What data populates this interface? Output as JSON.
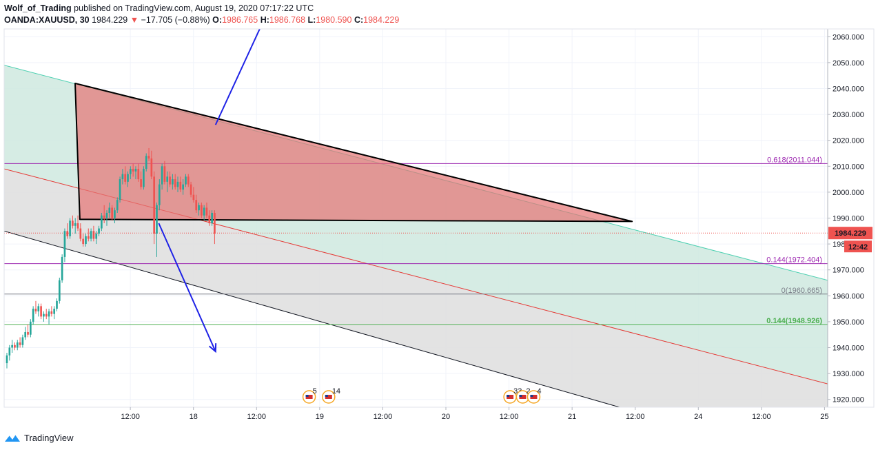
{
  "header": {
    "author": "Wolf_of_Trading",
    "published": "published on TradingView.com, August 19, 2020 07:17:22 UTC",
    "symbol": "OANDA:XAUUSD, 30",
    "last": "1984.229",
    "change": "−17.705 (−0.88%)",
    "o_label": "O:",
    "o": "1986.765",
    "h_label": "H:",
    "h": "1986.768",
    "l_label": "L:",
    "l": "1980.590",
    "c_label": "C:",
    "c": "1984.229"
  },
  "footer": {
    "brand": "TradingView",
    "logo_icon": "tradingview-logo-icon"
  },
  "colors": {
    "up": "#26a69a",
    "down": "#ef5350",
    "price_line": "#ef5350",
    "fib": "#9c27b0",
    "fib_green": "#4caf50",
    "channel_fill": "#e0e0e0",
    "green_fill": "#cfe9df",
    "triangle_fill": "#e57373",
    "arrow": "#1e22e6",
    "grid": "#f0f3fa"
  },
  "chart_data": {
    "type": "candlestick",
    "y_ticks": [
      "1920.000",
      "1930.000",
      "1940.000",
      "1950.000",
      "1960.000",
      "1970.000",
      "1980.000",
      "1990.000",
      "2000.000",
      "2010.000",
      "2020.000",
      "2030.000",
      "2040.000",
      "2050.000",
      "2060.000"
    ],
    "y_tick_values": [
      1920,
      1930,
      1940,
      1950,
      1960,
      1970,
      1980,
      1990,
      2000,
      2010,
      2020,
      2030,
      2040,
      2050,
      2060
    ],
    "ylim": [
      1917,
      2063
    ],
    "x_ticks": [
      {
        "label": "12:00",
        "t": 12
      },
      {
        "label": "18",
        "t": 24
      },
      {
        "label": "12:00",
        "t": 36
      },
      {
        "label": "19",
        "t": 48
      },
      {
        "label": "12:00",
        "t": 60
      },
      {
        "label": "20",
        "t": 72
      },
      {
        "label": "12:00",
        "t": 84
      },
      {
        "label": "21",
        "t": 96
      },
      {
        "label": "12:00",
        "t": 108
      },
      {
        "label": "24",
        "t": 120
      },
      {
        "label": "12:00",
        "t": 132
      },
      {
        "label": "25",
        "t": 144
      }
    ],
    "xlim": [
      -12,
      144.6
    ],
    "last_price": {
      "value": 1984.229,
      "label": "1984.229",
      "countdown": "12:42"
    },
    "fib_levels": [
      {
        "text": "0.618(2011.044)",
        "value": 2011.044,
        "kind": "fib"
      },
      {
        "text": "0.144(1972.404)",
        "value": 1972.404,
        "kind": "fib"
      },
      {
        "text": "0(1960.665)",
        "value": 1960.665,
        "kind": "gray"
      },
      {
        "text": "0.144(1948.926)",
        "value": 1948.926,
        "kind": "green"
      }
    ],
    "channel": {
      "upper": {
        "t1": -12,
        "p1": 2049,
        "t2": 144.6,
        "p2": 1966
      },
      "middle": {
        "t1": -12,
        "p1": 2009,
        "t2": 144.6,
        "p2": 1926
      },
      "lower": {
        "t1": -12,
        "p1": 1985,
        "t2": 144.6,
        "p2": 1894
      }
    },
    "triangle": [
      {
        "t": 1.5,
        "p": 2042
      },
      {
        "t": 107.4,
        "p": 1988.7
      },
      {
        "t": 2.4,
        "p": 1989.5
      }
    ],
    "arrows": [
      {
        "name": "arrow-up",
        "from": {
          "t": 28.2,
          "p": 2026
        },
        "to": {
          "t": 36.6,
          "p": 2063
        }
      },
      {
        "name": "arrow-down",
        "from": {
          "t": 17.4,
          "p": 1988
        },
        "to": {
          "t": 28.2,
          "p": 1938.5
        },
        "head": true
      }
    ],
    "events": [
      {
        "label": "5",
        "t": 46
      },
      {
        "label": "14",
        "t": 49.7
      },
      {
        "label": "33",
        "t": 84.2
      },
      {
        "label": "2",
        "t": 86.6
      },
      {
        "label": "4",
        "t": 88.7
      }
    ],
    "candles": [
      [
        1934,
        1938,
        1932,
        1937
      ],
      [
        1937,
        1941,
        1935,
        1940
      ],
      [
        1940,
        1943,
        1938,
        1941
      ],
      [
        1941,
        1942,
        1939,
        1940
      ],
      [
        1940,
        1943,
        1939,
        1942
      ],
      [
        1942,
        1944,
        1940,
        1941
      ],
      [
        1941,
        1945,
        1940,
        1944
      ],
      [
        1944,
        1948,
        1943,
        1946
      ],
      [
        1946,
        1949,
        1944,
        1945
      ],
      [
        1945,
        1951,
        1944,
        1950
      ],
      [
        1950,
        1956,
        1949,
        1955
      ],
      [
        1955,
        1958,
        1953,
        1954
      ],
      [
        1954,
        1957,
        1952,
        1956
      ],
      [
        1956,
        1957,
        1951,
        1952
      ],
      [
        1952,
        1954,
        1950,
        1953
      ],
      [
        1953,
        1955,
        1951,
        1952
      ],
      [
        1952,
        1955,
        1949,
        1954
      ],
      [
        1954,
        1956,
        1952,
        1953
      ],
      [
        1953,
        1956,
        1951,
        1955
      ],
      [
        1955,
        1959,
        1954,
        1958
      ],
      [
        1958,
        1967,
        1957,
        1966
      ],
      [
        1966,
        1976,
        1965,
        1975
      ],
      [
        1975,
        1986,
        1973,
        1985
      ],
      [
        1985,
        1988,
        1982,
        1983
      ],
      [
        1983,
        1990,
        1982,
        1989
      ],
      [
        1989,
        1991,
        1986,
        1987
      ],
      [
        1987,
        1990,
        1984,
        1988
      ],
      [
        1988,
        1991,
        1985,
        1986
      ],
      [
        1986,
        1988,
        1981,
        1982
      ],
      [
        1982,
        1984,
        1979,
        1980
      ],
      [
        1980,
        1984,
        1979,
        1983
      ],
      [
        1983,
        1986,
        1981,
        1982
      ],
      [
        1982,
        1986,
        1981,
        1985
      ],
      [
        1985,
        1987,
        1981,
        1982
      ],
      [
        1982,
        1985,
        1980,
        1984
      ],
      [
        1984,
        1987,
        1983,
        1986
      ],
      [
        1986,
        1992,
        1985,
        1991
      ],
      [
        1991,
        1995,
        1988,
        1990
      ],
      [
        1990,
        1993,
        1987,
        1992
      ],
      [
        1992,
        1996,
        1990,
        1994
      ],
      [
        1994,
        1995,
        1989,
        1990
      ],
      [
        1990,
        1994,
        1988,
        1993
      ],
      [
        1993,
        1998,
        1992,
        1997
      ],
      [
        1997,
        2006,
        1996,
        2005
      ],
      [
        2005,
        2009,
        2003,
        2007
      ],
      [
        2007,
        2010,
        2003,
        2004
      ],
      [
        2004,
        2008,
        2002,
        2007
      ],
      [
        2007,
        2010,
        2005,
        2009
      ],
      [
        2009,
        2011,
        2006,
        2008
      ],
      [
        2008,
        2010,
        2005,
        2009
      ],
      [
        2009,
        2011,
        2004,
        2005
      ],
      [
        2005,
        2008,
        2001,
        2002
      ],
      [
        2002,
        2010,
        2001,
        2009
      ],
      [
        2009,
        2015,
        2008,
        2014
      ],
      [
        2014,
        2017,
        2012,
        2013
      ],
      [
        2013,
        2016,
        2005,
        2006
      ],
      [
        2006,
        2008,
        1980,
        1984
      ],
      [
        1984,
        1996,
        1975,
        1995
      ],
      [
        1995,
        2005,
        1993,
        2003
      ],
      [
        2003,
        2011,
        2001,
        2010
      ],
      [
        2010,
        2012,
        2003,
        2004
      ],
      [
        2004,
        2008,
        2000,
        2006
      ],
      [
        2006,
        2008,
        2002,
        2003
      ],
      [
        2003,
        2007,
        2001,
        2005
      ],
      [
        2005,
        2007,
        2001,
        2002
      ],
      [
        2002,
        2006,
        2000,
        2004
      ],
      [
        2004,
        2006,
        2000,
        2001
      ],
      [
        2001,
        2005,
        1999,
        2003
      ],
      [
        2003,
        2007,
        2002,
        2006
      ],
      [
        2006,
        2007,
        2002,
        2003
      ],
      [
        2003,
        2004,
        1998,
        1999
      ],
      [
        1999,
        2002,
        1996,
        1997
      ],
      [
        1997,
        1999,
        1992,
        1993
      ],
      [
        1993,
        1996,
        1991,
        1995
      ],
      [
        1995,
        1996,
        1990,
        1991
      ],
      [
        1991,
        1995,
        1989,
        1994
      ],
      [
        1994,
        1996,
        1990,
        1991
      ],
      [
        1991,
        1993,
        1987,
        1988
      ],
      [
        1988,
        1993,
        1987,
        1992
      ],
      [
        1992,
        1993,
        1980,
        1984
      ]
    ]
  }
}
